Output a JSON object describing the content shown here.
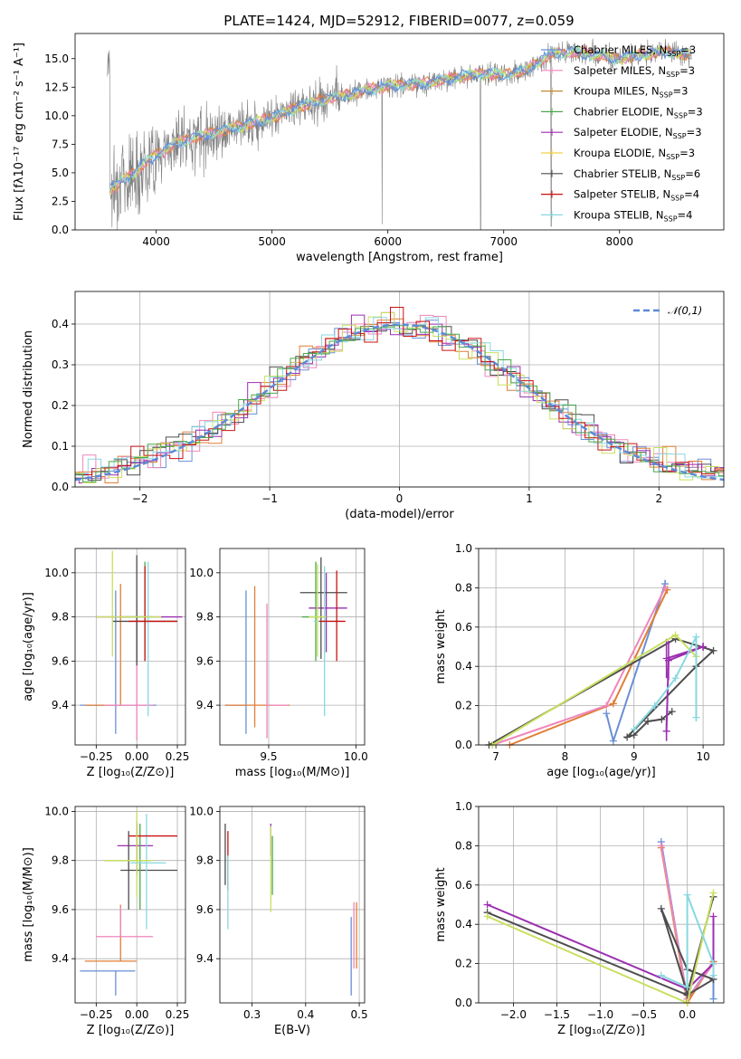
{
  "title": "PLATE=1424, MJD=52912, FIBERID=0077, z=0.059",
  "series_colors": [
    "#6a8fd6",
    "#e07e36",
    "#8ed08e",
    "#ee86bb",
    "#8cd2d8",
    "#9b2fb0",
    "#c8e060",
    "#4d4d4d",
    "#cc1111",
    "#4aa84a",
    "#f0d04a",
    "#88d8e0"
  ],
  "legend": [
    {
      "label": "Chabrier MILES, N",
      "sub": "SSP",
      "suffix": "=3",
      "color": "#6a8fd6"
    },
    {
      "label": "Salpeter MILES, N",
      "sub": "SSP",
      "suffix": "=3",
      "color": "#ee86bb"
    },
    {
      "label": "Kroupa MILES, N",
      "sub": "SSP",
      "suffix": "=3",
      "color": "#c08a3a"
    },
    {
      "label": "Chabrier ELODIE, N",
      "sub": "SSP",
      "suffix": "=3",
      "color": "#4aa84a"
    },
    {
      "label": "Salpeter ELODIE, N",
      "sub": "SSP",
      "suffix": "=3",
      "color": "#9b2fb0"
    },
    {
      "label": "Kroupa ELODIE, N",
      "sub": "SSP",
      "suffix": "=3",
      "color": "#f0d04a"
    },
    {
      "label": "Chabrier STELIB, N",
      "sub": "SSP",
      "suffix": "=6",
      "color": "#4d4d4d"
    },
    {
      "label": "Salpeter STELIB, N",
      "sub": "SSP",
      "suffix": "=4",
      "color": "#cc1111"
    },
    {
      "label": "Kroupa STELIB, N",
      "sub": "SSP",
      "suffix": "=4",
      "color": "#88d8e0"
    }
  ],
  "chart_data": [
    {
      "id": "spectrum",
      "type": "line",
      "xlabel": "wavelength [Angstrom, rest frame]",
      "ylabel": "Flux [fλ10⁻¹⁷ erg cm⁻² s⁻¹ A⁻¹]",
      "xlim": [
        3300,
        8900
      ],
      "ylim": [
        0,
        17.2
      ],
      "xticks": [
        4000,
        5000,
        6000,
        7000,
        8000
      ],
      "xtick_labels": [
        "4000",
        "5000",
        "6000",
        "7000",
        "8000"
      ],
      "yticks": [
        0,
        2.5,
        5,
        7.5,
        10,
        12.5,
        15
      ],
      "ytick_labels": [
        "0.0",
        "2.5",
        "5.0",
        "7.5",
        "10.0",
        "12.5",
        "15.0"
      ],
      "grid": false,
      "legend_placement": "right",
      "continuum": {
        "x": [
          3600,
          3800,
          4000,
          4200,
          4400,
          4600,
          4800,
          5000,
          5200,
          5400,
          5600,
          5800,
          6000,
          6200,
          6400,
          6600,
          6800,
          7000,
          7200,
          7400,
          7600,
          7800,
          8000,
          8200,
          8400,
          8600
        ],
        "y": [
          3.5,
          5.0,
          6.6,
          7.7,
          8.3,
          8.8,
          9.3,
          9.8,
          10.7,
          11.3,
          11.7,
          12.2,
          12.6,
          12.7,
          13.0,
          13.4,
          13.7,
          13.6,
          14.0,
          15.4,
          15.6,
          15.3,
          15.0,
          15.4,
          15.6,
          15.3
        ]
      },
      "data_range": [
        3580,
        8620
      ]
    },
    {
      "id": "residuals",
      "type": "histogram",
      "xlabel": "(data-model)/error",
      "ylabel": "Normed distribution",
      "xlim": [
        -2.5,
        2.5
      ],
      "ylim": [
        0,
        0.48
      ],
      "xticks": [
        -2,
        -1,
        0,
        1,
        2
      ],
      "xtick_labels": [
        "−2",
        "−1",
        "0",
        "1",
        "2"
      ],
      "yticks": [
        0,
        0.1,
        0.2,
        0.3,
        0.4
      ],
      "ytick_labels": [
        "0.0",
        "0.1",
        "0.2",
        "0.3",
        "0.4"
      ],
      "grid": true,
      "legend": "𝒩(0,1)",
      "legend_placement": "top-right",
      "bin_width": 0.1
    },
    {
      "id": "age_vs_Z",
      "type": "errorbar",
      "xlabel": "Z [log₁₀(Z/Z⊙)]",
      "ylabel": "age  [log₁₀(age/yr)]",
      "xlim": [
        -0.38,
        0.3
      ],
      "ylim": [
        9.22,
        10.11
      ],
      "xticks": [
        -0.25,
        0,
        0.25
      ],
      "xtick_labels": [
        "−0.25",
        "0.00",
        "0.25"
      ],
      "yticks": [
        9.4,
        9.6,
        9.8,
        10.0
      ],
      "ytick_labels": [
        "9.4",
        "9.6",
        "9.8",
        "10.0"
      ],
      "grid": true,
      "points": [
        {
          "x": -0.13,
          "y": 9.4,
          "xerr": [
            0.22,
            0.25
          ],
          "yerr": [
            0.13,
            0.52
          ],
          "color": "#6a8fd6"
        },
        {
          "x": -0.1,
          "y": 9.4,
          "xerr": [
            0.22,
            0.0
          ],
          "yerr": [
            0.0,
            0.55
          ],
          "color": "#e07e36"
        },
        {
          "x": 0.0,
          "y": 9.4,
          "xerr": [
            0.2,
            0.1
          ],
          "yerr": [
            0.16,
            0.47
          ],
          "color": "#ee86bb"
        },
        {
          "x": 0.0,
          "y": 9.8,
          "xerr": [
            0.25,
            0.28
          ],
          "yerr": [
            0.2,
            0.0
          ],
          "color": "#9b2fb0"
        },
        {
          "x": 0.0,
          "y": 9.78,
          "xerr": [
            0.15,
            0.25
          ],
          "yerr": [
            0.2,
            0.3
          ],
          "color": "#4d4d4d"
        },
        {
          "x": 0.05,
          "y": 9.8,
          "xerr": [
            0.15,
            0.05
          ],
          "yerr": [
            0.2,
            0.25
          ],
          "color": "#4aa84a"
        },
        {
          "x": 0.07,
          "y": 9.8,
          "xerr": [
            0.1,
            0.05
          ],
          "yerr": [
            0.45,
            0.25
          ],
          "color": "#88d8e0"
        },
        {
          "x": 0.05,
          "y": 9.78,
          "xerr": [
            0.1,
            0.2
          ],
          "yerr": [
            0.18,
            0.25
          ],
          "color": "#cc1111"
        },
        {
          "x": -0.15,
          "y": 9.8,
          "xerr": [
            0.1,
            0.3
          ],
          "yerr": [
            0.18,
            0.3
          ],
          "color": "#c8e060"
        }
      ]
    },
    {
      "id": "age_vs_mass",
      "type": "errorbar",
      "xlabel": "mass [log₁₀(M/M⊙)]",
      "ylabel": "",
      "xlim": [
        9.22,
        10.05
      ],
      "ylim": [
        9.22,
        10.11
      ],
      "xticks": [
        9.5,
        10.0
      ],
      "xtick_labels": [
        "9.5",
        "10.0"
      ],
      "yticks": [
        9.4,
        9.6,
        9.8,
        10.0
      ],
      "ytick_labels": [
        "9.4",
        "9.6",
        "9.8",
        "10.0"
      ],
      "grid": true,
      "points": [
        {
          "x": 9.37,
          "y": 9.4,
          "xerr": [
            0.12,
            0.0
          ],
          "yerr": [
            0.13,
            0.52
          ],
          "color": "#6a8fd6"
        },
        {
          "x": 9.42,
          "y": 9.4,
          "xerr": [
            0.17,
            0.2
          ],
          "yerr": [
            0.1,
            0.54
          ],
          "color": "#e07e36"
        },
        {
          "x": 9.49,
          "y": 9.4,
          "xerr": [
            0.0,
            0.12
          ],
          "yerr": [
            0.15,
            0.46
          ],
          "color": "#ee86bb"
        },
        {
          "x": 9.83,
          "y": 9.84,
          "xerr": [
            0.1,
            0.12
          ],
          "yerr": [
            0.2,
            0.16
          ],
          "color": "#9b2fb0"
        },
        {
          "x": 9.8,
          "y": 9.91,
          "xerr": [
            0.12,
            0.15
          ],
          "yerr": [
            0.3,
            0.16
          ],
          "color": "#4d4d4d"
        },
        {
          "x": 9.77,
          "y": 9.8,
          "xerr": [
            0.08,
            0.05
          ],
          "yerr": [
            0.2,
            0.25
          ],
          "color": "#4aa84a"
        },
        {
          "x": 9.82,
          "y": 9.78,
          "xerr": [
            0.06,
            0.1
          ],
          "yerr": [
            0.43,
            0.25
          ],
          "color": "#88d8e0"
        },
        {
          "x": 9.89,
          "y": 9.78,
          "xerr": [
            0.1,
            0.05
          ],
          "yerr": [
            0.18,
            0.23
          ],
          "color": "#cc1111"
        },
        {
          "x": 9.78,
          "y": 9.8,
          "xerr": [
            0.05,
            0.05
          ],
          "yerr": [
            0.18,
            0.24
          ],
          "color": "#c8e060"
        }
      ]
    },
    {
      "id": "weight_vs_age",
      "type": "line",
      "xlabel": "age  [log₁₀(age/yr)]",
      "ylabel": "mass weight",
      "xlim": [
        6.75,
        10.3
      ],
      "ylim": [
        0,
        1.0
      ],
      "xticks": [
        7,
        8,
        9,
        10
      ],
      "xtick_labels": [
        "7",
        "8",
        "9",
        "10"
      ],
      "yticks": [
        0,
        0.2,
        0.4,
        0.6,
        0.8,
        1.0
      ],
      "ytick_labels": [
        "0.0",
        "0.2",
        "0.4",
        "0.6",
        "0.8",
        "1.0"
      ],
      "grid": true,
      "series": [
        {
          "color": "#6a8fd6",
          "x": [
            8.6,
            8.7,
            9.45
          ],
          "y": [
            0.16,
            0.02,
            0.82
          ],
          "err": [
            0,
            0,
            0.02
          ]
        },
        {
          "color": "#e07e36",
          "x": [
            7.2,
            8.7,
            9.48
          ],
          "y": [
            0.0,
            0.21,
            0.79
          ],
          "err": [
            0,
            0,
            0.02
          ]
        },
        {
          "color": "#ee86bb",
          "x": [
            6.95,
            8.6,
            9.45
          ],
          "y": [
            0.0,
            0.2,
            0.8
          ],
          "err": [
            0,
            0,
            0
          ]
        },
        {
          "color": "#4d4d4d",
          "x": [
            6.9,
            9.6,
            10.15,
            9.9,
            8.9,
            9.0,
            9.2,
            9.4,
            9.55
          ],
          "y": [
            0.0,
            0.54,
            0.48,
            0.4,
            0.04,
            0.05,
            0.12,
            0.13,
            0.17
          ],
          "err": [
            0,
            0,
            0,
            0,
            0,
            0,
            0,
            0,
            0
          ]
        },
        {
          "color": "#9b2fb0",
          "x": [
            9.47,
            9.5,
            10.0,
            9.47
          ],
          "y": [
            0.07,
            0.43,
            0.5,
            0.44
          ],
          "err": [
            0.05,
            0.1,
            0.02,
            0.1
          ]
        },
        {
          "color": "#c8e060",
          "x": [
            6.95,
            9.6,
            9.9
          ],
          "y": [
            0.0,
            0.56,
            0.45
          ],
          "err": [
            0,
            0,
            0
          ]
        },
        {
          "color": "#88d8e0",
          "x": [
            9.0,
            9.3,
            9.6,
            9.9,
            9.9
          ],
          "y": [
            0.08,
            0.2,
            0.34,
            0.55,
            0.14
          ],
          "err": [
            0,
            0,
            0,
            0,
            0.02
          ]
        }
      ]
    },
    {
      "id": "mass_vs_Z",
      "type": "errorbar",
      "xlabel": "Z [log₁₀(Z/Z⊙)]",
      "ylabel": "mass [log₁₀(M/M⊙)]",
      "xlim": [
        -0.38,
        0.3
      ],
      "ylim": [
        9.22,
        10.02
      ],
      "xticks": [
        -0.25,
        0,
        0.25
      ],
      "xtick_labels": [
        "−0.25",
        "0.00",
        "0.25"
      ],
      "yticks": [
        9.4,
        9.6,
        9.8,
        10.0
      ],
      "ytick_labels": [
        "9.4",
        "9.6",
        "9.8",
        "10.0"
      ],
      "grid": true,
      "points": [
        {
          "x": -0.13,
          "y": 9.35,
          "xerr": [
            0.22,
            0.12
          ],
          "yerr": [
            0.1,
            0.0
          ],
          "color": "#6a8fd6"
        },
        {
          "x": -0.1,
          "y": 9.39,
          "xerr": [
            0.22,
            0.1
          ],
          "yerr": [
            0.0,
            0.23
          ],
          "color": "#e07e36"
        },
        {
          "x": -0.1,
          "y": 9.49,
          "xerr": [
            0.15,
            0.2
          ],
          "yerr": [
            0.0,
            0.12
          ],
          "color": "#ee86bb"
        },
        {
          "x": 0.0,
          "y": 9.86,
          "xerr": [
            0.12,
            0.1
          ],
          "yerr": [
            0.12,
            0.1
          ],
          "color": "#9b2fb0"
        },
        {
          "x": -0.05,
          "y": 9.76,
          "xerr": [
            0.05,
            0.3
          ],
          "yerr": [
            0.16,
            0.16
          ],
          "color": "#4d4d4d"
        },
        {
          "x": 0.02,
          "y": 9.8,
          "xerr": [
            0.22,
            0.06
          ],
          "yerr": [
            0.2,
            0.15
          ],
          "color": "#4aa84a"
        },
        {
          "x": 0.06,
          "y": 9.79,
          "xerr": [
            0.1,
            0.12
          ],
          "yerr": [
            0.27,
            0.2
          ],
          "color": "#88d8e0"
        },
        {
          "x": 0.0,
          "y": 9.9,
          "xerr": [
            0.05,
            0.25
          ],
          "yerr": [
            0.1,
            0.05
          ],
          "color": "#cc1111"
        },
        {
          "x": 0.0,
          "y": 9.8,
          "xerr": [
            0.2,
            0.1
          ],
          "yerr": [
            0.15,
            0.2
          ],
          "color": "#c8e060"
        }
      ]
    },
    {
      "id": "mass_vs_EBV",
      "type": "errorbar",
      "xlabel": "E(B-V)",
      "ylabel": "",
      "xlim": [
        0.24,
        0.51
      ],
      "ylim": [
        9.22,
        10.02
      ],
      "xticks": [
        0.3,
        0.4,
        0.5
      ],
      "xtick_labels": [
        "0.3",
        "0.4",
        "0.5"
      ],
      "yticks": [
        9.4,
        9.6,
        9.8,
        10.0
      ],
      "ytick_labels": [
        "9.4",
        "9.6",
        "9.8",
        "10.0"
      ],
      "grid": true,
      "points": [
        {
          "x": 0.25,
          "y": 9.9,
          "yerr": [
            0.2,
            0.05
          ],
          "color": "#4d4d4d"
        },
        {
          "x": 0.255,
          "y": 9.8,
          "yerr": [
            0.12,
            0.12
          ],
          "color": "#cc1111"
        },
        {
          "x": 0.255,
          "y": 9.72,
          "yerr": [
            0.2,
            0.1
          ],
          "color": "#88d8e0"
        },
        {
          "x": 0.335,
          "y": 9.9,
          "yerr": [
            0.08,
            0.05
          ],
          "color": "#9b2fb0"
        },
        {
          "x": 0.335,
          "y": 9.8,
          "yerr": [
            0.21,
            0.14
          ],
          "color": "#c8e060"
        },
        {
          "x": 0.338,
          "y": 9.83,
          "yerr": [
            0.17,
            0.07
          ],
          "color": "#4aa84a"
        },
        {
          "x": 0.485,
          "y": 9.39,
          "yerr": [
            0.14,
            0.18
          ],
          "color": "#6a8fd6"
        },
        {
          "x": 0.49,
          "y": 9.5,
          "yerr": [
            0.14,
            0.13
          ],
          "color": "#ee86bb"
        },
        {
          "x": 0.495,
          "y": 9.5,
          "yerr": [
            0.14,
            0.13
          ],
          "color": "#e07e36"
        }
      ]
    },
    {
      "id": "weight_vs_Z",
      "type": "line",
      "xlabel": "Z [log₁₀(Z/Z⊙)]",
      "ylabel": "mass weight",
      "xlim": [
        -2.4,
        0.42
      ],
      "ylim": [
        0,
        1.0
      ],
      "xticks": [
        -2.0,
        -1.5,
        -1.0,
        -0.5,
        0.0
      ],
      "xtick_labels": [
        "−2.0",
        "−1.5",
        "−1.0",
        "−0.5",
        "0.0"
      ],
      "yticks": [
        0,
        0.2,
        0.4,
        0.6,
        0.8,
        1.0
      ],
      "ytick_labels": [
        "0.0",
        "0.2",
        "0.4",
        "0.6",
        "0.8",
        "1.0"
      ],
      "grid": true,
      "series": [
        {
          "color": "#6a8fd6",
          "x": [
            -0.3,
            0.0,
            0.3,
            0.3
          ],
          "y": [
            0.82,
            0.02,
            0.21,
            0.02
          ]
        },
        {
          "color": "#e07e36",
          "x": [
            -0.3,
            0.0,
            0.3
          ],
          "y": [
            0.79,
            0.0,
            0.21
          ]
        },
        {
          "color": "#ee86bb",
          "x": [
            -0.3,
            0.0,
            0.3
          ],
          "y": [
            0.8,
            0.02,
            0.2
          ]
        },
        {
          "color": "#9b2fb0",
          "x": [
            -2.3,
            0.0,
            0.3,
            0.3
          ],
          "y": [
            0.5,
            0.07,
            0.2,
            0.44
          ]
        },
        {
          "color": "#4d4d4d",
          "x": [
            -2.3,
            0.0,
            0.3,
            0.0,
            -0.3,
            0.0,
            0.3
          ],
          "y": [
            0.46,
            0.04,
            0.12,
            0.17,
            0.48,
            0.05,
            0.54
          ]
        },
        {
          "color": "#c8e060",
          "x": [
            -2.3,
            0.0,
            0.3
          ],
          "y": [
            0.44,
            0.0,
            0.56
          ]
        },
        {
          "color": "#88d8e0",
          "x": [
            -0.3,
            0.0,
            0.0,
            0.3,
            0.3
          ],
          "y": [
            0.14,
            0.08,
            0.55,
            0.2,
            0.14
          ]
        }
      ]
    }
  ]
}
